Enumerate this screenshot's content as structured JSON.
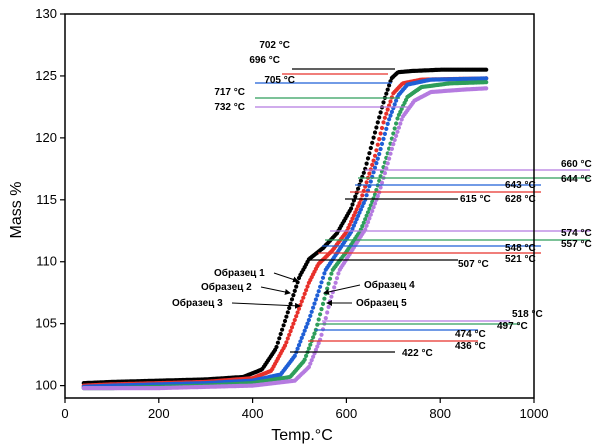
{
  "chart_data": {
    "type": "scatter",
    "title": "",
    "xlabel": "Temp.°C",
    "ylabel": "Mass %",
    "xlim": [
      0,
      1000
    ],
    "ylim": [
      99,
      130
    ],
    "xticks": [
      0,
      200,
      400,
      600,
      800,
      1000
    ],
    "yticks": [
      100,
      105,
      110,
      115,
      120,
      125,
      130
    ],
    "grid": false,
    "series": [
      {
        "name": "Образец 1",
        "color": "#000000",
        "points": [
          [
            40,
            100.2
          ],
          [
            100,
            100.3
          ],
          [
            200,
            100.4
          ],
          [
            300,
            100.5
          ],
          [
            380,
            100.7
          ],
          [
            420,
            101.3
          ],
          [
            450,
            103.0
          ],
          [
            480,
            106.5
          ],
          [
            500,
            108.8
          ],
          [
            520,
            110.2
          ],
          [
            550,
            111.1
          ],
          [
            580,
            112.3
          ],
          [
            610,
            114.3
          ],
          [
            640,
            117.5
          ],
          [
            660,
            120.3
          ],
          [
            680,
            123.0
          ],
          [
            696,
            124.8
          ],
          [
            710,
            125.3
          ],
          [
            740,
            125.4
          ],
          [
            800,
            125.5
          ],
          [
            900,
            125.5
          ]
        ]
      },
      {
        "name": "Образец 2",
        "color": "#e8302a",
        "points": [
          [
            40,
            100.0
          ],
          [
            100,
            100.1
          ],
          [
            200,
            100.2
          ],
          [
            300,
            100.3
          ],
          [
            400,
            100.6
          ],
          [
            440,
            101.2
          ],
          [
            470,
            103.3
          ],
          [
            500,
            106.3
          ],
          [
            520,
            108.3
          ],
          [
            540,
            109.8
          ],
          [
            570,
            110.9
          ],
          [
            600,
            112.4
          ],
          [
            630,
            114.9
          ],
          [
            660,
            118.4
          ],
          [
            680,
            121.4
          ],
          [
            700,
            123.6
          ],
          [
            720,
            124.4
          ],
          [
            760,
            124.7
          ],
          [
            900,
            124.8
          ]
        ]
      },
      {
        "name": "Образец 3",
        "color": "#1f5fd6",
        "points": [
          [
            40,
            99.9
          ],
          [
            100,
            100.0
          ],
          [
            200,
            100.1
          ],
          [
            300,
            100.2
          ],
          [
            400,
            100.4
          ],
          [
            460,
            100.9
          ],
          [
            490,
            102.4
          ],
          [
            520,
            105.3
          ],
          [
            540,
            107.5
          ],
          [
            555,
            109.3
          ],
          [
            580,
            110.7
          ],
          [
            610,
            112.4
          ],
          [
            640,
            115.0
          ],
          [
            670,
            118.7
          ],
          [
            690,
            121.4
          ],
          [
            710,
            123.4
          ],
          [
            730,
            124.3
          ],
          [
            780,
            124.7
          ],
          [
            900,
            124.8
          ]
        ]
      },
      {
        "name": "Образец 4",
        "color": "#2e9e5b",
        "points": [
          [
            40,
            99.8
          ],
          [
            100,
            99.8
          ],
          [
            200,
            99.9
          ],
          [
            300,
            100.0
          ],
          [
            400,
            100.2
          ],
          [
            480,
            100.7
          ],
          [
            510,
            102.0
          ],
          [
            535,
            104.5
          ],
          [
            555,
            107.3
          ],
          [
            570,
            109.3
          ],
          [
            600,
            110.8
          ],
          [
            630,
            112.5
          ],
          [
            660,
            115.3
          ],
          [
            690,
            119.0
          ],
          [
            710,
            121.7
          ],
          [
            730,
            123.3
          ],
          [
            760,
            124.1
          ],
          [
            820,
            124.4
          ],
          [
            900,
            124.5
          ]
        ]
      },
      {
        "name": "Образец 5",
        "color": "#b57be0",
        "points": [
          [
            40,
            99.8
          ],
          [
            100,
            99.8
          ],
          [
            200,
            99.8
          ],
          [
            300,
            99.9
          ],
          [
            400,
            100.0
          ],
          [
            490,
            100.4
          ],
          [
            520,
            101.5
          ],
          [
            545,
            103.8
          ],
          [
            565,
            106.8
          ],
          [
            585,
            109.3
          ],
          [
            610,
            110.8
          ],
          [
            640,
            112.6
          ],
          [
            670,
            115.6
          ],
          [
            700,
            119.5
          ],
          [
            720,
            121.7
          ],
          [
            745,
            123.0
          ],
          [
            780,
            123.7
          ],
          [
            850,
            123.9
          ],
          [
            900,
            124.0
          ]
        ]
      }
    ],
    "annotations": {
      "temps": [
        {
          "text": "702 °C",
          "series": 0,
          "x": 702
        },
        {
          "text": "696 °C",
          "series": 1,
          "x": 696
        },
        {
          "text": "705 °C",
          "series": 2,
          "x": 705
        },
        {
          "text": "717 °C",
          "series": 3,
          "x": 717
        },
        {
          "text": "732 °C",
          "series": 4,
          "x": 732
        },
        {
          "text": "660 °C",
          "series": 4,
          "x": 660
        },
        {
          "text": "644 °C",
          "series": 3,
          "x": 644
        },
        {
          "text": "643 °C",
          "series": 2,
          "x": 643
        },
        {
          "text": "628 °C",
          "series": 1,
          "x": 628
        },
        {
          "text": "615 °C",
          "series": 0,
          "x": 615
        },
        {
          "text": "574 °C",
          "series": 4,
          "x": 574
        },
        {
          "text": "557 °C",
          "series": 3,
          "x": 557
        },
        {
          "text": "548 °C",
          "series": 2,
          "x": 548
        },
        {
          "text": "521 °C",
          "series": 1,
          "x": 521
        },
        {
          "text": "507 °C",
          "series": 0,
          "x": 507
        },
        {
          "text": "518 °C",
          "series": 4,
          "x": 518
        },
        {
          "text": "497 °C",
          "series": 3,
          "x": 497
        },
        {
          "text": "474 °C",
          "series": 2,
          "x": 474
        },
        {
          "text": "436 °C",
          "series": 1,
          "x": 436
        },
        {
          "text": "422 °C",
          "series": 0,
          "x": 422
        }
      ],
      "samples": [
        {
          "text": "Образец 1",
          "series": 0
        },
        {
          "text": "Образец 2",
          "series": 1
        },
        {
          "text": "Образец 3",
          "series": 2
        },
        {
          "text": "Образец 4",
          "series": 3
        },
        {
          "text": "Образец 5",
          "series": 4
        }
      ]
    }
  }
}
